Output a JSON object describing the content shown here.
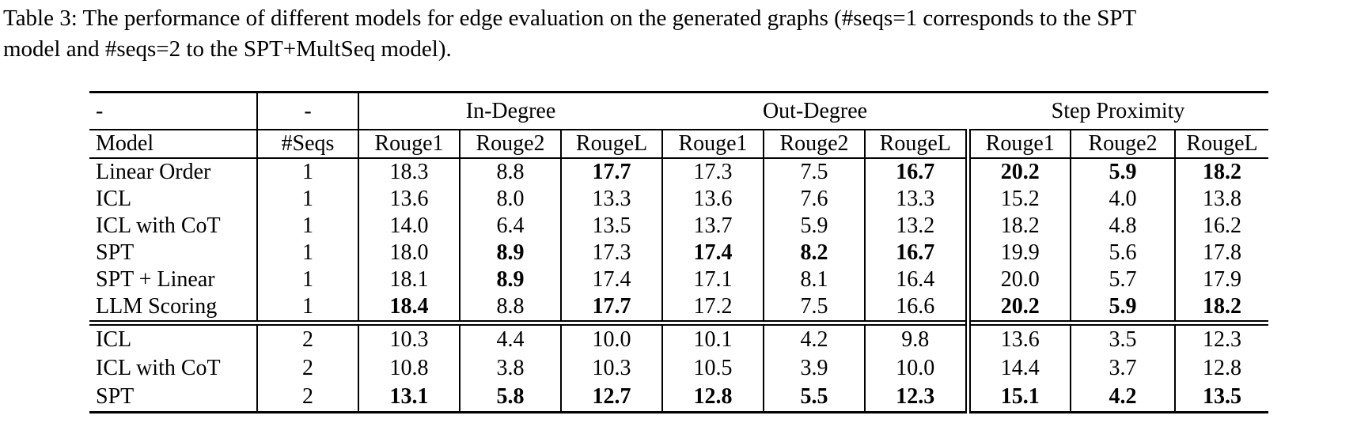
{
  "caption": {
    "lines": [
      "Table 3: The performance of different models for edge evaluation on the generated graphs (#seqs=1 corresponds to the SPT",
      "model and #seqs=2 to the SPT+MultSeq model)."
    ]
  },
  "colors": {
    "text": "#000000",
    "background": "#ffffff",
    "rule": "#000000"
  },
  "table": {
    "column_groups": [
      {
        "label": "-",
        "span": 1
      },
      {
        "label": "-",
        "span": 1
      },
      {
        "label": "In-Degree",
        "span": 3
      },
      {
        "label": "Out-Degree",
        "span": 3
      },
      {
        "label": "Step Proximity",
        "span": 3
      }
    ],
    "columns": [
      "Model",
      "#Seqs",
      "Rouge1",
      "Rouge2",
      "RougeL",
      "Rouge1",
      "Rouge2",
      "RougeL",
      "Rouge1",
      "Rouge2",
      "RougeL"
    ],
    "groups": [
      {
        "rows": [
          {
            "model": "Linear Order",
            "seqs": "1",
            "values": [
              "18.3",
              "8.8",
              "17.7",
              "17.3",
              "7.5",
              "16.7",
              "20.2",
              "5.9",
              "18.2"
            ],
            "bold": [
              false,
              false,
              true,
              false,
              false,
              true,
              true,
              true,
              true
            ]
          },
          {
            "model": "ICL",
            "seqs": "1",
            "values": [
              "13.6",
              "8.0",
              "13.3",
              "13.6",
              "7.6",
              "13.3",
              "15.2",
              "4.0",
              "13.8"
            ],
            "bold": [
              false,
              false,
              false,
              false,
              false,
              false,
              false,
              false,
              false
            ]
          },
          {
            "model": "ICL with CoT",
            "seqs": "1",
            "values": [
              "14.0",
              "6.4",
              "13.5",
              "13.7",
              "5.9",
              "13.2",
              "18.2",
              "4.8",
              "16.2"
            ],
            "bold": [
              false,
              false,
              false,
              false,
              false,
              false,
              false,
              false,
              false
            ]
          },
          {
            "model": "SPT",
            "seqs": "1",
            "values": [
              "18.0",
              "8.9",
              "17.3",
              "17.4",
              "8.2",
              "16.7",
              "19.9",
              "5.6",
              "17.8"
            ],
            "bold": [
              false,
              true,
              false,
              true,
              true,
              true,
              false,
              false,
              false
            ]
          },
          {
            "model": "SPT + Linear",
            "seqs": "1",
            "values": [
              "18.1",
              "8.9",
              "17.4",
              "17.1",
              "8.1",
              "16.4",
              "20.0",
              "5.7",
              "17.9"
            ],
            "bold": [
              false,
              true,
              false,
              false,
              false,
              false,
              false,
              false,
              false
            ]
          },
          {
            "model": "LLM Scoring",
            "seqs": "1",
            "values": [
              "18.4",
              "8.8",
              "17.7",
              "17.2",
              "7.5",
              "16.6",
              "20.2",
              "5.9",
              "18.2"
            ],
            "bold": [
              true,
              false,
              true,
              false,
              false,
              false,
              true,
              true,
              true
            ]
          }
        ]
      },
      {
        "rows": [
          {
            "model": "ICL",
            "seqs": "2",
            "values": [
              "10.3",
              "4.4",
              "10.0",
              "10.1",
              "4.2",
              "9.8",
              "13.6",
              "3.5",
              "12.3"
            ],
            "bold": [
              false,
              false,
              false,
              false,
              false,
              false,
              false,
              false,
              false
            ]
          },
          {
            "model": "ICL with CoT",
            "seqs": "2",
            "values": [
              "10.8",
              "3.8",
              "10.3",
              "10.5",
              "3.9",
              "10.0",
              "14.4",
              "3.7",
              "12.8"
            ],
            "bold": [
              false,
              false,
              false,
              false,
              false,
              false,
              false,
              false,
              false
            ]
          },
          {
            "model": "SPT",
            "seqs": "2",
            "values": [
              "13.1",
              "5.8",
              "12.7",
              "12.8",
              "5.5",
              "12.3",
              "15.1",
              "4.2",
              "13.5"
            ],
            "bold": [
              true,
              true,
              true,
              true,
              true,
              true,
              true,
              true,
              true
            ]
          }
        ]
      }
    ]
  }
}
